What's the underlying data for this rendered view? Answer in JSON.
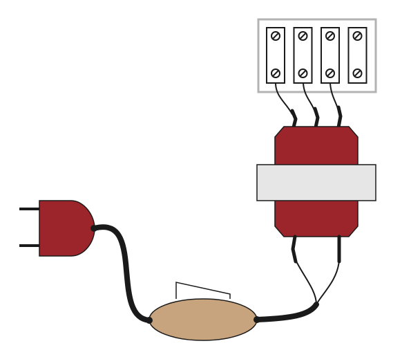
{
  "colors": {
    "background": "#ffffff",
    "plug_red": "#9b252a",
    "transformer_red": "#9b252a",
    "outline": "#1a1a1a",
    "cord": "#1a1a1a",
    "switch_body": "#c8a47e",
    "terminal_frame": "#b3b3b3",
    "core_band": "#e6e6e6",
    "screw_fill": "#ffffff"
  },
  "components": {
    "plug": {
      "icon": "electric-plug-icon",
      "prongs": 2
    },
    "inline_switch": {
      "icon": "rocker-switch-icon"
    },
    "transformer": {
      "icon": "transformer-icon",
      "primary_leads": 2,
      "secondary_leads": 3
    },
    "terminal_block": {
      "icon": "terminal-strip-icon",
      "terminals": 4,
      "screws_per_terminal": 2
    }
  }
}
